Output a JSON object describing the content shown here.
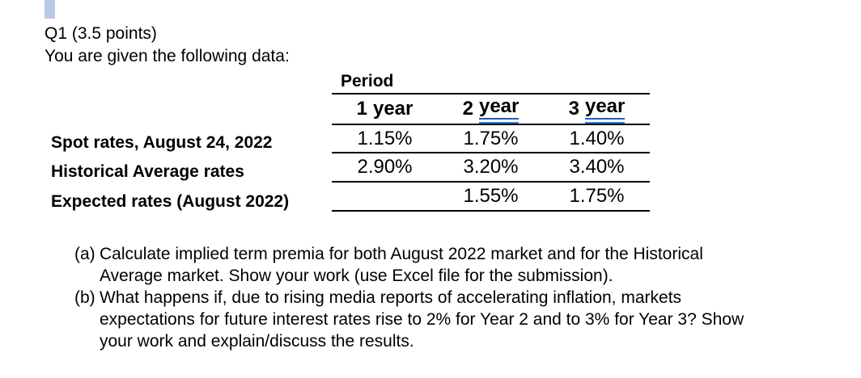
{
  "page": {
    "title": "Q1 (3.5 points)",
    "intro": "You are given the following data:"
  },
  "table": {
    "caption": "Period",
    "columns": [
      {
        "num": "1",
        "word": "year",
        "grammar_underline": false
      },
      {
        "num": "2",
        "word": "year",
        "grammar_underline": true
      },
      {
        "num": "3",
        "word": "year",
        "grammar_underline": true
      }
    ],
    "rows": [
      {
        "label": "Spot rates, August 24, 2022",
        "values": [
          "1.15%",
          "1.75%",
          "1.40%"
        ]
      },
      {
        "label": "Historical Average rates",
        "values": [
          "2.90%",
          "3.20%",
          "3.40%"
        ]
      },
      {
        "label": "Expected rates (August 2022)",
        "values": [
          "",
          "1.55%",
          "1.75%"
        ]
      }
    ]
  },
  "questions": [
    {
      "marker": "(a)",
      "lines": [
        "Calculate implied term premia for both August 2022 market and for the Historical",
        "Average market. Show your work (use Excel file for the submission)."
      ]
    },
    {
      "marker": "(b)",
      "lines": [
        "What happens if, due to rising media reports of accelerating inflation, markets",
        "expectations for future interest rates rise to 2% for Year 2 and to 3% for Year 3? Show",
        "your work and explain/discuss the results."
      ]
    }
  ],
  "colors": {
    "text": "#000000",
    "table_rule": "#000000",
    "grammar_underline_top": "#2156c8",
    "grammar_underline_bottom": "#2f7de2",
    "selection_marker": "#b8c9e8"
  }
}
